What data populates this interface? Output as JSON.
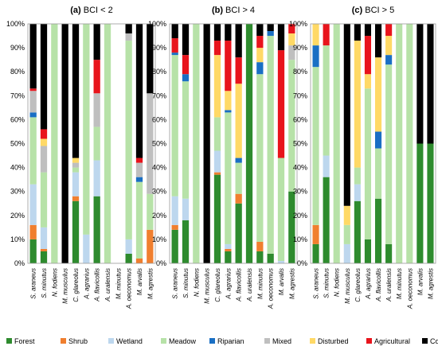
{
  "chart_data": [
    {
      "type": "bar",
      "stacked": true,
      "panel_label": "(a)",
      "title": "BCI < 2",
      "categories": [
        "S. araneus",
        "S. minutus",
        "N. fodiens",
        "M. musculus",
        "C. glareolus",
        "A. agrarius",
        "A. flavicollis",
        "A. uralensis",
        "M. minutus",
        "A. oeconomus",
        "M. arvalis",
        "M. agrestis"
      ],
      "ylim": [
        0,
        100
      ],
      "yticks": [
        "0%",
        "10%",
        "20%",
        "30%",
        "40%",
        "50%",
        "60%",
        "70%",
        "80%",
        "90%",
        "100%"
      ],
      "series": [
        {
          "name": "Forest",
          "values": [
            10,
            5,
            0,
            0,
            26,
            0,
            28,
            0,
            0,
            4,
            0,
            0
          ]
        },
        {
          "name": "Shrub",
          "values": [
            6,
            1,
            0,
            0,
            2,
            0,
            0,
            0,
            0,
            0,
            2,
            14
          ]
        },
        {
          "name": "Wetland",
          "values": [
            17,
            9,
            0,
            0,
            10,
            12,
            15,
            0,
            0,
            6,
            0,
            0
          ]
        },
        {
          "name": "Meadow",
          "values": [
            28,
            23,
            100,
            0,
            2,
            88,
            14,
            100,
            0,
            83,
            32,
            15
          ]
        },
        {
          "name": "Riparian",
          "values": [
            2,
            0,
            0,
            0,
            0,
            0,
            0,
            0,
            0,
            0,
            2,
            0
          ]
        },
        {
          "name": "Mixed",
          "values": [
            9,
            11,
            0,
            0,
            2,
            0,
            14,
            0,
            0,
            3,
            6,
            42
          ]
        },
        {
          "name": "Disturbed",
          "values": [
            0,
            3,
            0,
            0,
            2,
            0,
            0,
            0,
            0,
            0,
            0,
            0
          ]
        },
        {
          "name": "Agricultural",
          "values": [
            1,
            4,
            0,
            0,
            0,
            0,
            14,
            0,
            0,
            0,
            2,
            0
          ]
        },
        {
          "name": "Commensal",
          "values": [
            27,
            44,
            0,
            100,
            56,
            0,
            15,
            0,
            0,
            4,
            56,
            29
          ]
        }
      ]
    },
    {
      "type": "bar",
      "stacked": true,
      "panel_label": "(b)",
      "title": "BCI > 4",
      "categories": [
        "S. araneus",
        "S. minutus",
        "N. fodiens",
        "M. musculus",
        "C. glareolus",
        "A. agrarius",
        "A. flavicollis",
        "A. uralensis",
        "M. minutus",
        "A. oeconomus",
        "M. arvalis",
        "M. agrestis"
      ],
      "ylim": [
        0,
        100
      ],
      "yticks": [
        "0%",
        "10%",
        "20%",
        "30%",
        "40%",
        "50%",
        "60%",
        "70%",
        "80%",
        "90%",
        "100%"
      ],
      "series": [
        {
          "name": "Forest",
          "values": [
            14,
            18,
            0,
            0,
            37,
            5,
            25,
            100,
            5,
            4,
            0,
            30
          ]
        },
        {
          "name": "Shrub",
          "values": [
            2,
            0,
            0,
            0,
            1,
            1,
            4,
            0,
            4,
            0,
            0,
            0
          ]
        },
        {
          "name": "Wetland",
          "values": [
            12,
            9,
            0,
            0,
            9,
            2,
            0,
            0,
            0,
            0,
            1,
            0
          ]
        },
        {
          "name": "Meadow",
          "values": [
            59,
            49,
            100,
            0,
            14,
            55,
            13,
            0,
            70,
            91,
            43,
            55
          ]
        },
        {
          "name": "Riparian",
          "values": [
            1,
            3,
            0,
            0,
            0,
            1,
            2,
            0,
            5,
            2,
            0,
            0
          ]
        },
        {
          "name": "Mixed",
          "values": [
            0,
            0,
            0,
            0,
            0,
            0,
            0,
            0,
            0,
            0,
            0,
            6
          ]
        },
        {
          "name": "Disturbed",
          "values": [
            0,
            0,
            0,
            0,
            26,
            8,
            31,
            0,
            6,
            0,
            0,
            5
          ]
        },
        {
          "name": "Agricultural",
          "values": [
            6,
            8,
            0,
            0,
            6,
            21,
            11,
            0,
            5,
            0,
            45,
            4
          ]
        },
        {
          "name": "Commensal",
          "values": [
            6,
            13,
            0,
            100,
            7,
            7,
            14,
            0,
            5,
            3,
            11,
            0
          ]
        }
      ]
    },
    {
      "type": "bar",
      "stacked": true,
      "panel_label": "(c)",
      "title": "BCI > 5",
      "categories": [
        "S. araneus",
        "S. minutus",
        "N. fodiens",
        "M. musculus",
        "C. glareolus",
        "A. agrarius",
        "A. flavicollis",
        "A. uralensis",
        "M. minutus",
        "A. oeconomus",
        "M. arvalis",
        "M. agrestis"
      ],
      "ylim": [
        0,
        100
      ],
      "yticks": [
        "0%",
        "10%",
        "20%",
        "30%",
        "40%",
        "50%",
        "60%",
        "70%",
        "80%",
        "90%",
        "100%"
      ],
      "series": [
        {
          "name": "Forest",
          "values": [
            8,
            36,
            0,
            0,
            26,
            10,
            27,
            8,
            0,
            0,
            50,
            50
          ]
        },
        {
          "name": "Shrub",
          "values": [
            8,
            0,
            0,
            0,
            0,
            0,
            0,
            0,
            0,
            0,
            0,
            0
          ]
        },
        {
          "name": "Wetland",
          "values": [
            0,
            9,
            0,
            8,
            7,
            0,
            0,
            0,
            0,
            0,
            0,
            0
          ]
        },
        {
          "name": "Meadow",
          "values": [
            66,
            46,
            100,
            8,
            7,
            63,
            21,
            75,
            100,
            100,
            0,
            0
          ]
        },
        {
          "name": "Riparian",
          "values": [
            9,
            0,
            0,
            0,
            0,
            0,
            7,
            4,
            0,
            0,
            0,
            0
          ]
        },
        {
          "name": "Mixed",
          "values": [
            0,
            0,
            0,
            0,
            0,
            0,
            0,
            0,
            0,
            0,
            0,
            0
          ]
        },
        {
          "name": "Disturbed",
          "values": [
            9,
            0,
            0,
            8,
            53,
            6,
            31,
            8,
            0,
            0,
            0,
            0
          ]
        },
        {
          "name": "Agricultural",
          "values": [
            0,
            9,
            0,
            0,
            0,
            16,
            0,
            5,
            0,
            0,
            0,
            0
          ]
        },
        {
          "name": "Commensal",
          "values": [
            0,
            0,
            0,
            76,
            7,
            5,
            14,
            0,
            0,
            0,
            50,
            50
          ]
        }
      ]
    }
  ],
  "legend": {
    "placement": "bottom",
    "items": [
      {
        "name": "Forest",
        "color": "#2e8b2e"
      },
      {
        "name": "Shrub",
        "color": "#f07f2f"
      },
      {
        "name": "Wetland",
        "color": "#bdd7ee"
      },
      {
        "name": "Meadow",
        "color": "#b7e2a8"
      },
      {
        "name": "Riparian",
        "color": "#1a6fc4"
      },
      {
        "name": "Mixed",
        "color": "#bfbfbf"
      },
      {
        "name": "Disturbed",
        "color": "#ffd966"
      },
      {
        "name": "Agricultural",
        "color": "#e8141c"
      },
      {
        "name": "Commensal",
        "color": "#000000"
      }
    ]
  }
}
